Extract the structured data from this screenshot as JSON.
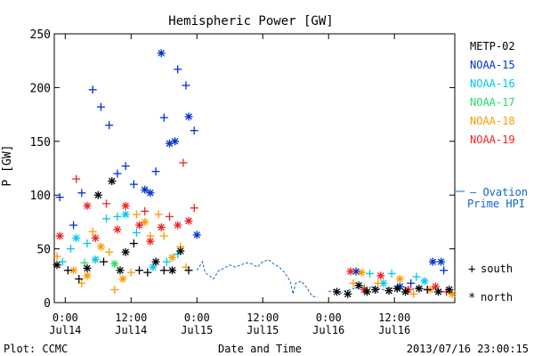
{
  "chart_data": {
    "type": "scatter",
    "title": "Hemispheric Power [GW]",
    "ylabel": "P [GW]",
    "xlabel": "Date and Time",
    "ylim": [
      0,
      250
    ],
    "xlim": [
      "2013-07-13 22:00",
      "2013-07-16 23:00"
    ],
    "y_ticks": [
      0,
      50,
      100,
      150,
      200,
      250
    ],
    "x_ticks": [
      {
        "t": "2013-07-14 00:00",
        "time": "0:00",
        "date": "Jul14"
      },
      {
        "t": "2013-07-14 12:00",
        "time": "12:00",
        "date": "Jul14"
      },
      {
        "t": "2013-07-15 00:00",
        "time": "0:00",
        "date": "Jul15"
      },
      {
        "t": "2013-07-15 12:00",
        "time": "12:00",
        "date": "Jul15"
      },
      {
        "t": "2013-07-16 00:00",
        "time": "0:00",
        "date": "Jul16"
      },
      {
        "t": "2013-07-16 12:00",
        "time": "12:00",
        "date": "Jul16"
      }
    ],
    "legend": [
      "METP-02",
      "NOAA-15",
      "NOAA-16",
      "NOAA-17",
      "NOAA-18",
      "NOAA-19"
    ],
    "ovation_label_1": "— Ovation",
    "ovation_label_2": "Prime HPI",
    "marker_legend": [
      {
        "symbol": "+",
        "label": "south"
      },
      {
        "symbol": "*",
        "label": "north"
      }
    ],
    "colors": {
      "METP-02": "#000000",
      "NOAA-15": "#0033cc",
      "NOAA-16": "#00c8e8",
      "NOAA-17": "#22dd66",
      "NOAA-18": "#ff9900",
      "NOAA-19": "#ee2222",
      "ovation": "#1166cc"
    },
    "series": [
      {
        "name": "NOAA-15",
        "points": [
          [
            "2013-07-13 23:00",
            98,
            "+"
          ],
          [
            "2013-07-14 01:30",
            72,
            "+"
          ],
          [
            "2013-07-14 03:00",
            102,
            "+"
          ],
          [
            "2013-07-14 05:00",
            198,
            "+"
          ],
          [
            "2013-07-14 06:30",
            182,
            "+"
          ],
          [
            "2013-07-14 08:00",
            165,
            "+"
          ],
          [
            "2013-07-14 09:30",
            120,
            "+"
          ],
          [
            "2013-07-14 11:00",
            127,
            "+"
          ],
          [
            "2013-07-14 12:30",
            110,
            "+"
          ],
          [
            "2013-07-14 14:30",
            105,
            "*"
          ],
          [
            "2013-07-14 15:30",
            102,
            "*"
          ],
          [
            "2013-07-14 16:30",
            122,
            "+"
          ],
          [
            "2013-07-14 17:30",
            232,
            "*"
          ],
          [
            "2013-07-14 18:00",
            172,
            "+"
          ],
          [
            "2013-07-14 19:00",
            148,
            "*"
          ],
          [
            "2013-07-14 20:00",
            150,
            "*"
          ],
          [
            "2013-07-14 20:30",
            217,
            "+"
          ],
          [
            "2013-07-14 22:00",
            202,
            "+"
          ],
          [
            "2013-07-14 22:30",
            173,
            "*"
          ],
          [
            "2013-07-14 23:30",
            160,
            "+"
          ],
          [
            "2013-07-15 00:00",
            63,
            "*"
          ],
          [
            "2013-07-16 05:00",
            29,
            "*"
          ],
          [
            "2013-07-16 19:00",
            38,
            "*"
          ],
          [
            "2013-07-16 20:30",
            38,
            "*"
          ],
          [
            "2013-07-16 21:00",
            30,
            "+"
          ],
          [
            "2013-07-16 13:00",
            15,
            "*"
          ],
          [
            "2013-07-16 15:00",
            18,
            "+"
          ]
        ]
      },
      {
        "name": "NOAA-16",
        "points": [
          [
            "2013-07-13 23:30",
            38,
            "+"
          ],
          [
            "2013-07-14 01:00",
            50,
            "+"
          ],
          [
            "2013-07-14 02:00",
            60,
            "*"
          ],
          [
            "2013-07-14 04:00",
            55,
            "+"
          ],
          [
            "2013-07-14 05:30",
            40,
            "*"
          ],
          [
            "2013-07-14 07:30",
            78,
            "+"
          ],
          [
            "2013-07-14 09:30",
            80,
            "+"
          ],
          [
            "2013-07-14 11:00",
            82,
            "*"
          ],
          [
            "2013-07-14 13:00",
            65,
            "+"
          ],
          [
            "2013-07-14 16:00",
            33,
            "*"
          ],
          [
            "2013-07-14 18:30",
            38,
            "+"
          ],
          [
            "2013-07-14 20:30",
            45,
            "+"
          ],
          [
            "2013-07-16 07:30",
            27,
            "+"
          ],
          [
            "2013-07-16 11:30",
            27,
            "+"
          ],
          [
            "2013-07-16 16:00",
            24,
            "+"
          ],
          [
            "2013-07-16 17:30",
            20,
            "*"
          ],
          [
            "2013-07-16 10:00",
            18,
            "*"
          ]
        ]
      },
      {
        "name": "NOAA-17",
        "points": [
          [
            "2013-07-14 03:30",
            37,
            "+"
          ],
          [
            "2013-07-14 09:00",
            36,
            "*"
          ],
          [
            "2013-07-16 06:30",
            14,
            "+"
          ]
        ]
      },
      {
        "name": "NOAA-18",
        "points": [
          [
            "2013-07-13 22:30",
            43,
            "+"
          ],
          [
            "2013-07-14 01:30",
            30,
            "*"
          ],
          [
            "2013-07-14 03:00",
            18,
            "+"
          ],
          [
            "2013-07-14 04:00",
            25,
            "*"
          ],
          [
            "2013-07-14 05:00",
            66,
            "+"
          ],
          [
            "2013-07-14 06:30",
            52,
            "*"
          ],
          [
            "2013-07-14 08:00",
            47,
            "+"
          ],
          [
            "2013-07-14 09:00",
            12,
            "+"
          ],
          [
            "2013-07-14 10:30",
            22,
            "*"
          ],
          [
            "2013-07-14 12:00",
            28,
            "+"
          ],
          [
            "2013-07-14 13:00",
            82,
            "+"
          ],
          [
            "2013-07-14 14:30",
            75,
            "*"
          ],
          [
            "2013-07-14 15:30",
            62,
            "+"
          ],
          [
            "2013-07-14 17:00",
            82,
            "+"
          ],
          [
            "2013-07-14 18:00",
            62,
            "+"
          ],
          [
            "2013-07-14 19:30",
            42,
            "*"
          ],
          [
            "2013-07-14 21:00",
            52,
            "+"
          ],
          [
            "2013-07-14 22:00",
            33,
            "+"
          ],
          [
            "2013-07-16 04:30",
            18,
            "+"
          ],
          [
            "2013-07-16 06:00",
            28,
            "*"
          ],
          [
            "2013-07-16 09:00",
            18,
            "+"
          ],
          [
            "2013-07-16 13:00",
            22,
            "*"
          ],
          [
            "2013-07-16 15:30",
            8,
            "+"
          ],
          [
            "2013-07-16 18:30",
            12,
            "*"
          ],
          [
            "2013-07-16 22:30",
            8,
            "*"
          ]
        ]
      },
      {
        "name": "NOAA-19",
        "points": [
          [
            "2013-07-13 23:00",
            62,
            "*"
          ],
          [
            "2013-07-14 02:00",
            115,
            "+"
          ],
          [
            "2013-07-14 04:00",
            90,
            "*"
          ],
          [
            "2013-07-14 05:30",
            60,
            "*"
          ],
          [
            "2013-07-14 07:30",
            92,
            "+"
          ],
          [
            "2013-07-14 09:30",
            68,
            "*"
          ],
          [
            "2013-07-14 11:00",
            90,
            "*"
          ],
          [
            "2013-07-14 13:30",
            72,
            "*"
          ],
          [
            "2013-07-14 14:30",
            85,
            "+"
          ],
          [
            "2013-07-14 15:30",
            57,
            "*"
          ],
          [
            "2013-07-14 17:30",
            70,
            "*"
          ],
          [
            "2013-07-14 19:00",
            80,
            "+"
          ],
          [
            "2013-07-14 20:30",
            72,
            "*"
          ],
          [
            "2013-07-14 21:30",
            130,
            "+"
          ],
          [
            "2013-07-14 22:30",
            76,
            "*"
          ],
          [
            "2013-07-14 23:30",
            88,
            "+"
          ],
          [
            "2013-07-16 04:00",
            29,
            "*"
          ],
          [
            "2013-07-16 06:30",
            12,
            "*"
          ],
          [
            "2013-07-16 09:30",
            25,
            "*"
          ],
          [
            "2013-07-16 14:30",
            12,
            "*"
          ],
          [
            "2013-07-16 19:30",
            15,
            "*"
          ],
          [
            "2013-07-16 21:30",
            10,
            "+"
          ]
        ]
      },
      {
        "name": "METP-02",
        "points": [
          [
            "2013-07-13 22:30",
            35,
            "*"
          ],
          [
            "2013-07-14 00:30",
            30,
            "+"
          ],
          [
            "2013-07-14 02:30",
            22,
            "+"
          ],
          [
            "2013-07-14 04:00",
            32,
            "*"
          ],
          [
            "2013-07-14 06:00",
            100,
            "*"
          ],
          [
            "2013-07-14 07:00",
            38,
            "+"
          ],
          [
            "2013-07-14 08:30",
            113,
            "*"
          ],
          [
            "2013-07-14 10:00",
            30,
            "*"
          ],
          [
            "2013-07-14 11:00",
            47,
            "*"
          ],
          [
            "2013-07-14 12:30",
            55,
            "+"
          ],
          [
            "2013-07-14 13:30",
            30,
            "+"
          ],
          [
            "2013-07-14 15:00",
            28,
            "+"
          ],
          [
            "2013-07-14 16:30",
            38,
            "*"
          ],
          [
            "2013-07-14 18:00",
            30,
            "+"
          ],
          [
            "2013-07-14 19:30",
            30,
            "*"
          ],
          [
            "2013-07-14 21:00",
            48,
            "*"
          ],
          [
            "2013-07-14 22:30",
            30,
            "+"
          ],
          [
            "2013-07-16 01:30",
            10,
            "*"
          ],
          [
            "2013-07-16 03:30",
            8,
            "*"
          ],
          [
            "2013-07-16 05:30",
            16,
            "*"
          ],
          [
            "2013-07-16 07:00",
            10,
            "*"
          ],
          [
            "2013-07-16 08:30",
            12,
            "*"
          ],
          [
            "2013-07-16 11:00",
            11,
            "*"
          ],
          [
            "2013-07-16 12:30",
            13,
            "*"
          ],
          [
            "2013-07-16 14:00",
            10,
            "*"
          ],
          [
            "2013-07-16 16:30",
            13,
            "*"
          ],
          [
            "2013-07-16 18:00",
            12,
            "+"
          ],
          [
            "2013-07-16 20:00",
            10,
            "*"
          ],
          [
            "2013-07-16 22:00",
            12,
            "*"
          ]
        ]
      }
    ],
    "ovation_segments": [
      [
        [
          "2013-07-15 00:00",
          30
        ],
        [
          "2013-07-15 00:30",
          34
        ],
        [
          "2013-07-15 01:00",
          38
        ],
        [
          "2013-07-15 01:30",
          28
        ],
        [
          "2013-07-15 02:00",
          26
        ],
        [
          "2013-07-15 03:00",
          22
        ],
        [
          "2013-07-15 04:00",
          30
        ],
        [
          "2013-07-15 05:00",
          32
        ],
        [
          "2013-07-15 06:00",
          35
        ],
        [
          "2013-07-15 07:00",
          33
        ],
        [
          "2013-07-15 08:00",
          35
        ],
        [
          "2013-07-15 09:00",
          37
        ],
        [
          "2013-07-15 10:00",
          36
        ],
        [
          "2013-07-15 11:00",
          33
        ],
        [
          "2013-07-15 12:00",
          38
        ],
        [
          "2013-07-15 13:00",
          40
        ],
        [
          "2013-07-15 14:00",
          36
        ],
        [
          "2013-07-15 15:00",
          33
        ],
        [
          "2013-07-15 16:00",
          28
        ],
        [
          "2013-07-15 17:00",
          20
        ],
        [
          "2013-07-15 17:30",
          8
        ],
        [
          "2013-07-15 18:00",
          18
        ],
        [
          "2013-07-15 19:00",
          20
        ],
        [
          "2013-07-15 20:00",
          14
        ],
        [
          "2013-07-15 21:00",
          6
        ],
        [
          "2013-07-15 22:00",
          5
        ]
      ],
      [
        [
          "2013-07-16 00:00",
          10
        ],
        [
          "2013-07-16 01:00",
          12
        ],
        [
          "2013-07-16 02:00",
          8
        ],
        [
          "2013-07-16 03:00",
          11
        ],
        [
          "2013-07-16 04:00",
          12
        ],
        [
          "2013-07-16 05:00",
          14
        ],
        [
          "2013-07-16 06:00",
          12
        ],
        [
          "2013-07-16 07:00",
          13
        ],
        [
          "2013-07-16 08:00",
          15
        ],
        [
          "2013-07-16 09:00",
          13
        ],
        [
          "2013-07-16 10:00",
          12
        ],
        [
          "2013-07-16 11:00",
          14
        ],
        [
          "2013-07-16 12:00",
          13
        ],
        [
          "2013-07-16 13:00",
          15
        ],
        [
          "2013-07-16 14:00",
          14
        ],
        [
          "2013-07-16 15:00",
          12
        ],
        [
          "2013-07-16 16:00",
          14
        ],
        [
          "2013-07-16 17:00",
          13
        ],
        [
          "2013-07-16 18:00",
          12
        ],
        [
          "2013-07-16 19:00",
          14
        ],
        [
          "2013-07-16 20:00",
          12
        ],
        [
          "2013-07-16 21:00",
          10
        ],
        [
          "2013-07-16 22:00",
          9
        ],
        [
          "2013-07-16 23:00",
          8
        ]
      ]
    ]
  },
  "footer": {
    "left": "Plot: CCMC",
    "right": "2013/07/16 23:00:15"
  }
}
